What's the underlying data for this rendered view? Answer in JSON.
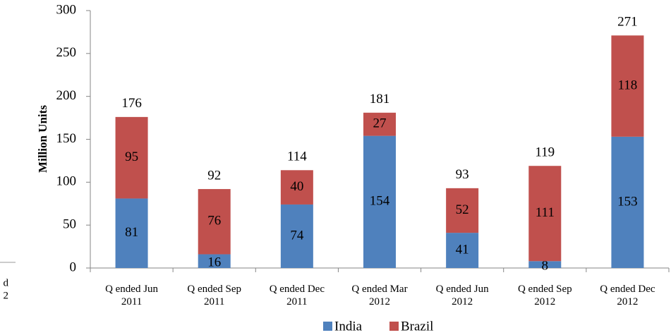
{
  "chart_data": {
    "type": "stacked_bar",
    "y_label": "Million Units",
    "categories": [
      "Q ended Jun 2011",
      "Q ended Sep 2011",
      "Q ended Dec 2011",
      "Q ended Mar 2012",
      "Q ended Jun 2012",
      "Q ended Sep 2012",
      "Q ended Dec 2012"
    ],
    "series": [
      {
        "name": "India",
        "color": "#4f81bd",
        "values": [
          81,
          16,
          74,
          154,
          41,
          8,
          153
        ]
      },
      {
        "name": "Brazil",
        "color": "#c0504d",
        "values": [
          95,
          76,
          40,
          27,
          52,
          111,
          118
        ]
      }
    ],
    "totals": [
      176,
      92,
      114,
      181,
      93,
      119,
      271
    ],
    "ylim": [
      0,
      300
    ],
    "yticks": [
      0,
      50,
      100,
      150,
      200,
      250,
      300
    ],
    "grid": false,
    "legend": "bottom"
  },
  "fragment_texts": [
    "d",
    "2"
  ]
}
